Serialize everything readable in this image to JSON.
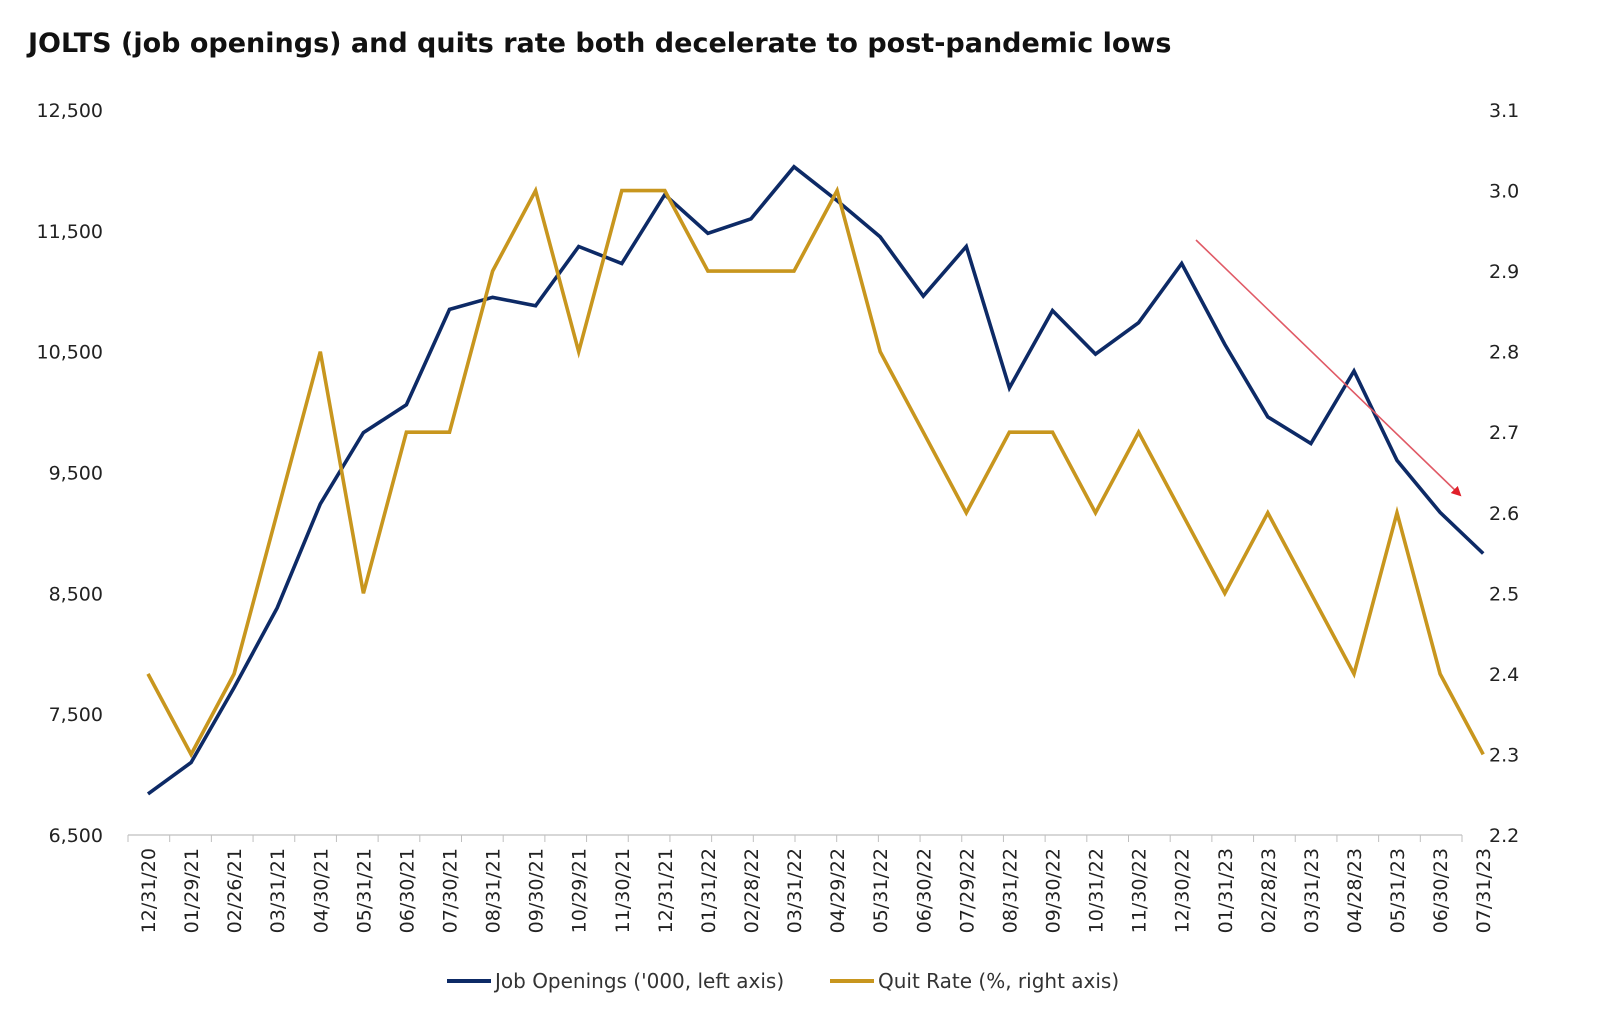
{
  "chart_data": {
    "type": "line",
    "title": "JOLTS (job openings) and quits rate both decelerate to post-pandemic lows",
    "categories": [
      "12/31/20",
      "01/29/21",
      "02/26/21",
      "03/31/21",
      "04/30/21",
      "05/31/21",
      "06/30/21",
      "07/30/21",
      "08/31/21",
      "09/30/21",
      "10/29/21",
      "11/30/21",
      "12/31/21",
      "01/31/22",
      "02/28/22",
      "03/31/22",
      "04/29/22",
      "05/31/22",
      "06/30/22",
      "07/29/22",
      "08/31/22",
      "09/30/22",
      "10/31/22",
      "11/30/22",
      "12/30/22",
      "01/31/23",
      "02/28/23",
      "03/31/23",
      "04/28/23",
      "05/31/23",
      "06/30/23",
      "07/31/23"
    ],
    "left_axis": {
      "min": 6500,
      "max": 12500,
      "ticks": [
        "6,500",
        "7,500",
        "8,500",
        "9,500",
        "10,500",
        "11,500",
        "12,500"
      ]
    },
    "right_axis": {
      "min": 2.2,
      "max": 3.1,
      "ticks": [
        "2.2",
        "2.3",
        "2.4",
        "2.5",
        "2.6",
        "2.7",
        "2.8",
        "2.9",
        "3.0",
        "3.1"
      ]
    },
    "series": [
      {
        "name": "Job Openings ('000, left axis)",
        "axis": "left",
        "color": "#0d2a66",
        "values": [
          6840,
          7100,
          7720,
          8380,
          9240,
          9830,
          10060,
          10850,
          10950,
          10880,
          11370,
          11230,
          11800,
          11480,
          11600,
          12030,
          11750,
          11450,
          10960,
          11370,
          10200,
          10840,
          10480,
          10740,
          11230,
          10560,
          9960,
          9740,
          10340,
          9600,
          9170,
          8830
        ]
      },
      {
        "name": "Quit Rate (%, right axis)",
        "axis": "right",
        "color": "#c8961e",
        "values": [
          2.4,
          2.3,
          2.4,
          2.6,
          2.8,
          2.5,
          2.7,
          2.7,
          2.9,
          3.0,
          2.8,
          3.0,
          3.0,
          2.9,
          2.9,
          2.9,
          3.0,
          2.8,
          2.7,
          2.6,
          2.7,
          2.7,
          2.6,
          2.7,
          2.6,
          2.5,
          2.6,
          2.5,
          2.4,
          2.6,
          2.4,
          2.3
        ]
      }
    ],
    "legend_position": "bottom",
    "grid": false,
    "annotation": {
      "type": "downward-trend-arrow",
      "color": "#e05a66"
    }
  }
}
